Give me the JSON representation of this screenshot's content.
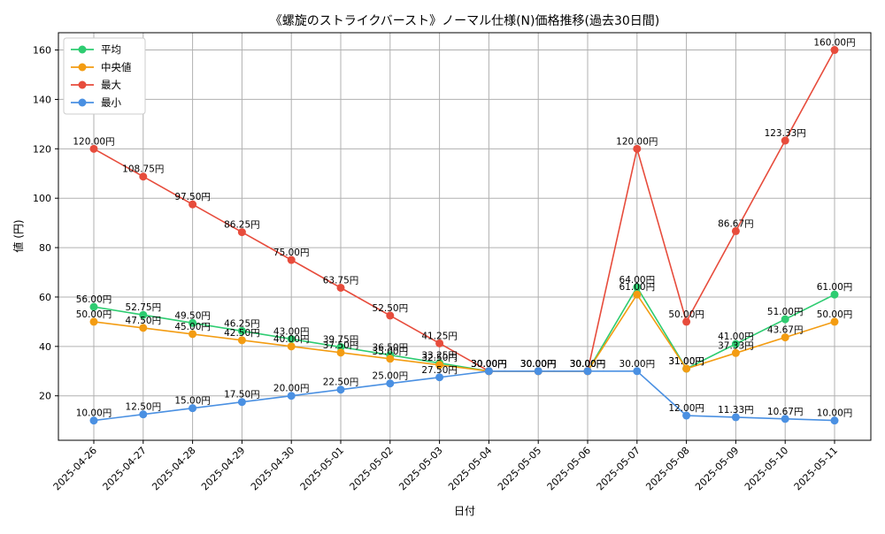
{
  "chart_data": {
    "type": "line",
    "title": "《螺旋のストライクバースト》ノーマル仕様(N)価格推移(過去30日間)",
    "xlabel": "日付",
    "ylabel": "値 (円)",
    "ylim": [
      2,
      167
    ],
    "yticks": [
      20,
      40,
      60,
      80,
      100,
      120,
      140,
      160
    ],
    "grid": true,
    "legend_position": "top-left",
    "label_suffix": "円",
    "categories": [
      "2025-04-26",
      "2025-04-27",
      "2025-04-28",
      "2025-04-29",
      "2025-04-30",
      "2025-05-01",
      "2025-05-02",
      "2025-05-03",
      "2025-05-04",
      "2025-05-05",
      "2025-05-06",
      "2025-05-07",
      "2025-05-08",
      "2025-05-09",
      "2025-05-10",
      "2025-05-11"
    ],
    "series": [
      {
        "name": "平均",
        "color": "#2ecc71",
        "values": [
          56.0,
          52.75,
          49.5,
          46.25,
          43.0,
          39.75,
          36.5,
          33.25,
          30.0,
          30.0,
          30.0,
          64.0,
          31.0,
          41.0,
          51.0,
          61.0
        ]
      },
      {
        "name": "中央値",
        "color": "#f39c12",
        "values": [
          50.0,
          47.5,
          45.0,
          42.5,
          40.0,
          37.5,
          35.0,
          32.5,
          30.0,
          30.0,
          30.0,
          61.0,
          31.0,
          37.33,
          43.67,
          50.0
        ]
      },
      {
        "name": "最大",
        "color": "#e74c3c",
        "values": [
          120.0,
          108.75,
          97.5,
          86.25,
          75.0,
          63.75,
          52.5,
          41.25,
          30.0,
          30.0,
          30.0,
          120.0,
          50.0,
          86.67,
          123.33,
          160.0
        ]
      },
      {
        "name": "最小",
        "color": "#4a90e2",
        "values": [
          10.0,
          12.5,
          15.0,
          17.5,
          20.0,
          22.5,
          25.0,
          27.5,
          30.0,
          30.0,
          30.0,
          30.0,
          12.0,
          11.33,
          10.67,
          10.0
        ]
      }
    ]
  }
}
